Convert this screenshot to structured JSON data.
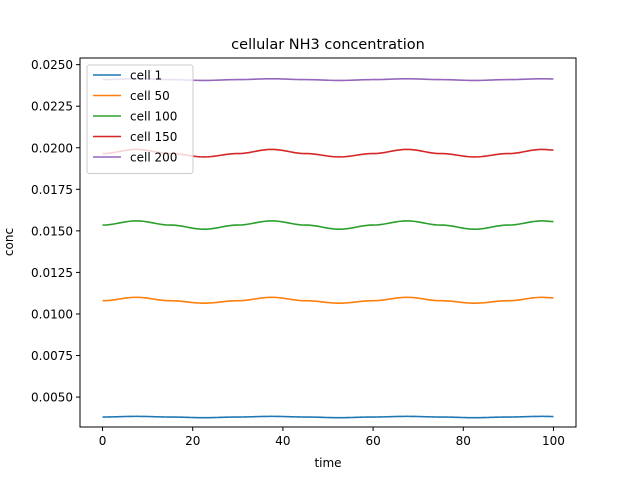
{
  "chart_data": {
    "type": "line",
    "title": "cellular NH3 concentration",
    "xlabel": "time",
    "ylabel": "conc",
    "xlim": [
      -5,
      105
    ],
    "ylim": [
      0.0032,
      0.0254
    ],
    "xticks": [
      0,
      20,
      40,
      60,
      80,
      100
    ],
    "xtick_labels": [
      "0",
      "20",
      "40",
      "60",
      "80",
      "100"
    ],
    "yticks": [
      0.005,
      0.0075,
      0.01,
      0.0125,
      0.015,
      0.0175,
      0.02,
      0.0225,
      0.025
    ],
    "ytick_labels": [
      "0.0050",
      "0.0075",
      "0.0100",
      "0.0125",
      "0.0150",
      "0.0175",
      "0.0200",
      "0.0225",
      "0.0250"
    ],
    "grid": false,
    "legend_position": "top-left",
    "series": [
      {
        "name": "cell 1",
        "color": "#1f77b4",
        "x": [
          0,
          7.5,
          15,
          22.5,
          30,
          37.5,
          45,
          52.5,
          60,
          67.5,
          75,
          82.5,
          90,
          97.5,
          100
        ],
        "y": [
          0.0038,
          0.00384,
          0.0038,
          0.00376,
          0.0038,
          0.00384,
          0.0038,
          0.00376,
          0.0038,
          0.00384,
          0.0038,
          0.00376,
          0.0038,
          0.00384,
          0.00383
        ]
      },
      {
        "name": "cell 50",
        "color": "#ff7f0e",
        "x": [
          0,
          7.5,
          15,
          22.5,
          30,
          37.5,
          45,
          52.5,
          60,
          67.5,
          75,
          82.5,
          90,
          97.5,
          100
        ],
        "y": [
          0.0108,
          0.011,
          0.0108,
          0.01065,
          0.0108,
          0.011,
          0.0108,
          0.01065,
          0.0108,
          0.011,
          0.0108,
          0.01065,
          0.0108,
          0.011,
          0.01097
        ]
      },
      {
        "name": "cell 100",
        "color": "#2ca02c",
        "x": [
          0,
          7.5,
          15,
          22.5,
          30,
          37.5,
          45,
          52.5,
          60,
          67.5,
          75,
          82.5,
          90,
          97.5,
          100
        ],
        "y": [
          0.01535,
          0.0156,
          0.01535,
          0.0151,
          0.01535,
          0.0156,
          0.01535,
          0.0151,
          0.01535,
          0.0156,
          0.01535,
          0.0151,
          0.01535,
          0.0156,
          0.01556
        ]
      },
      {
        "name": "cell 150",
        "color": "#d62728",
        "x": [
          0,
          7.5,
          15,
          22.5,
          30,
          37.5,
          45,
          52.5,
          60,
          67.5,
          75,
          82.5,
          90,
          97.5,
          100
        ],
        "y": [
          0.01965,
          0.0199,
          0.01965,
          0.01945,
          0.01965,
          0.0199,
          0.01965,
          0.01945,
          0.01965,
          0.0199,
          0.01965,
          0.01945,
          0.01965,
          0.0199,
          0.01986
        ]
      },
      {
        "name": "cell 200",
        "color": "#9467bd",
        "x": [
          0,
          7.5,
          15,
          22.5,
          30,
          37.5,
          45,
          52.5,
          60,
          67.5,
          75,
          82.5,
          90,
          97.5,
          100
        ],
        "y": [
          0.0241,
          0.02415,
          0.0241,
          0.02405,
          0.0241,
          0.02415,
          0.0241,
          0.02405,
          0.0241,
          0.02415,
          0.0241,
          0.02405,
          0.0241,
          0.02415,
          0.02414
        ]
      }
    ]
  }
}
